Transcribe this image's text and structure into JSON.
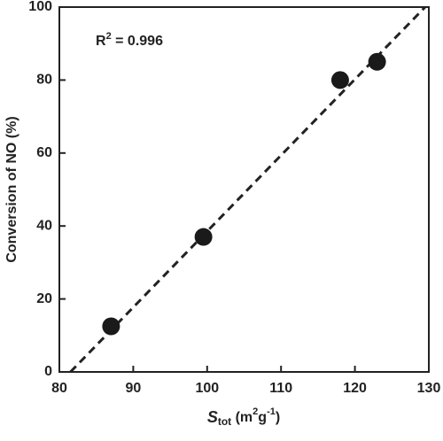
{
  "chart_data": {
    "type": "scatter",
    "x_label": [
      "S",
      "tot",
      " (m",
      "2",
      "g",
      "-1",
      ")"
    ],
    "y_label": "Conversion of NO (%)",
    "annotation": [
      "R",
      "2",
      " = 0.996"
    ],
    "x": [
      87,
      99.5,
      118,
      123
    ],
    "values": [
      12.5,
      37,
      80,
      85
    ],
    "color": "#1a1a1a",
    "fit_line": {
      "x": [
        81.5,
        129.5
      ],
      "y": [
        0,
        100
      ]
    },
    "xlim": [
      80,
      130
    ],
    "xticks": [
      80,
      90,
      100,
      110,
      120,
      130
    ],
    "ylim": [
      0,
      100
    ],
    "yticks": [
      0,
      20,
      40,
      60,
      80,
      100
    ]
  }
}
